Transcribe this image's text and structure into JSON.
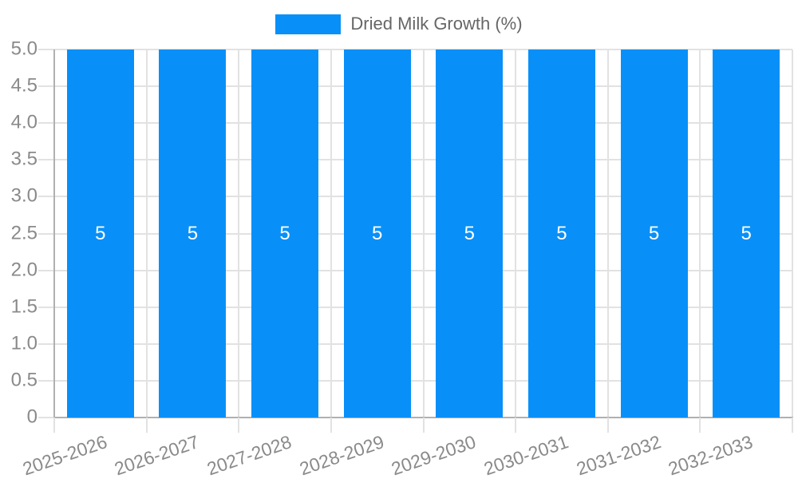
{
  "chart_data": {
    "type": "bar",
    "title": "",
    "legend_label": "Dried Milk Growth (%)",
    "legend_position": "top",
    "categories": [
      "2025-2026",
      "2026-2027",
      "2027-2028",
      "2028-2029",
      "2029-2030",
      "2030-2031",
      "2031-2032",
      "2032-2033"
    ],
    "series": [
      {
        "name": "Dried Milk Growth (%)",
        "values": [
          5,
          5,
          5,
          5,
          5,
          5,
          5,
          5
        ]
      }
    ],
    "bar_value_labels": [
      "5",
      "5",
      "5",
      "5",
      "5",
      "5",
      "5",
      "5"
    ],
    "xlabel": "",
    "ylabel": "",
    "ylim": [
      0,
      5
    ],
    "ytick_step": 0.5,
    "ytick_labels": [
      "5.0",
      "4.5",
      "4.0",
      "3.5",
      "3.0",
      "2.5",
      "2.0",
      "1.5",
      "1.0",
      "0.5",
      "0"
    ],
    "grid": true,
    "x_label_rotation_deg": -19,
    "colors": {
      "bar": "#0890f8",
      "grid": "#e2e2e2",
      "axis": "#b0b0b0",
      "tick_text": "#8a8a8a",
      "legend_text": "#666666",
      "bar_label_text": "#ffffff",
      "background": "#ffffff"
    }
  }
}
